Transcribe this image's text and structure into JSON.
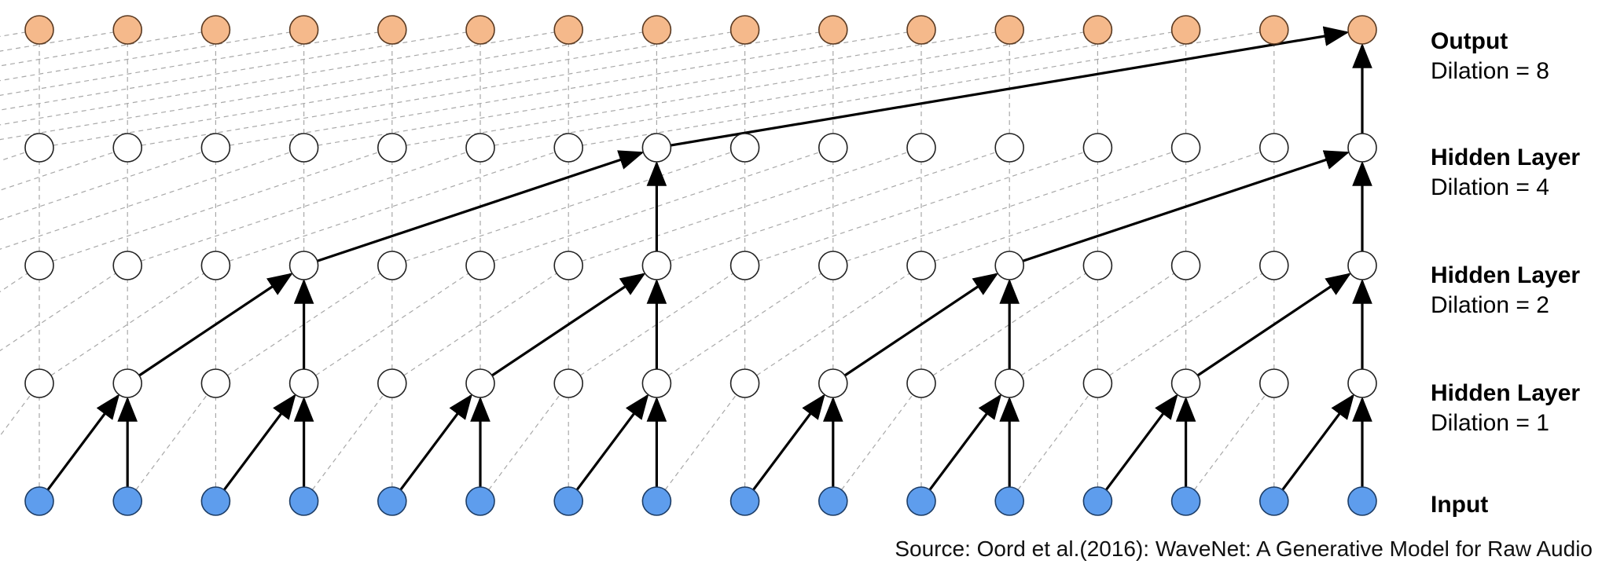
{
  "diagram": {
    "node_count": 16,
    "layers": [
      {
        "key": "input",
        "title": "Input",
        "subtitle": "",
        "dilation": 0,
        "fill": "#5e9ded",
        "stroke": "#1d3d66"
      },
      {
        "key": "hidden1",
        "title": "Hidden Layer",
        "subtitle": "Dilation = 1",
        "dilation": 1,
        "fill": "#ffffff",
        "stroke": "#222222"
      },
      {
        "key": "hidden2",
        "title": "Hidden Layer",
        "subtitle": "Dilation = 2",
        "dilation": 2,
        "fill": "#ffffff",
        "stroke": "#222222"
      },
      {
        "key": "hidden4",
        "title": "Hidden Layer",
        "subtitle": "Dilation = 4",
        "dilation": 4,
        "fill": "#ffffff",
        "stroke": "#222222"
      },
      {
        "key": "output",
        "title": "Output",
        "subtitle": "Dilation = 8",
        "dilation": 8,
        "fill": "#f5b98b",
        "stroke": "#5a3a22"
      }
    ],
    "colors": {
      "edge_active": "#000000",
      "edge_faint": "#a8a8a8"
    }
  },
  "source": "Source: Oord et al.(2016): WaveNet: A Generative Model for Raw Audio"
}
